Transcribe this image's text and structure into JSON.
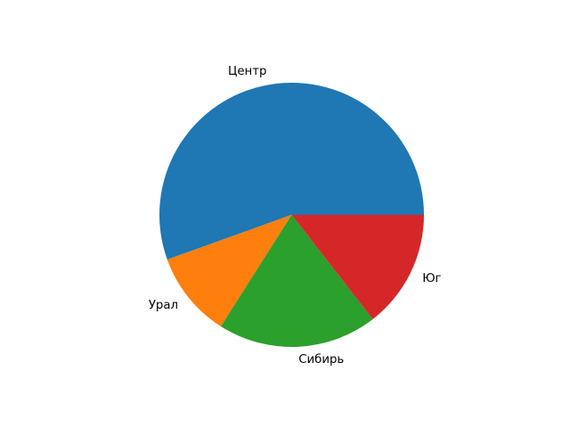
{
  "chart_data": {
    "type": "pie",
    "title": "",
    "labels": [
      "Центр",
      "Урал",
      "Сибирь",
      "Юг"
    ],
    "values": [
      55.5,
      10.5,
      19.5,
      14.5
    ],
    "colors": [
      "#1f77b4",
      "#ff7f0e",
      "#2ca02c",
      "#d62728"
    ],
    "start_angle": 0,
    "direction": "counterclockwise",
    "label_distance": 1.1,
    "legend": "none",
    "background_color": "#ffffff",
    "label_color": "#000000"
  }
}
